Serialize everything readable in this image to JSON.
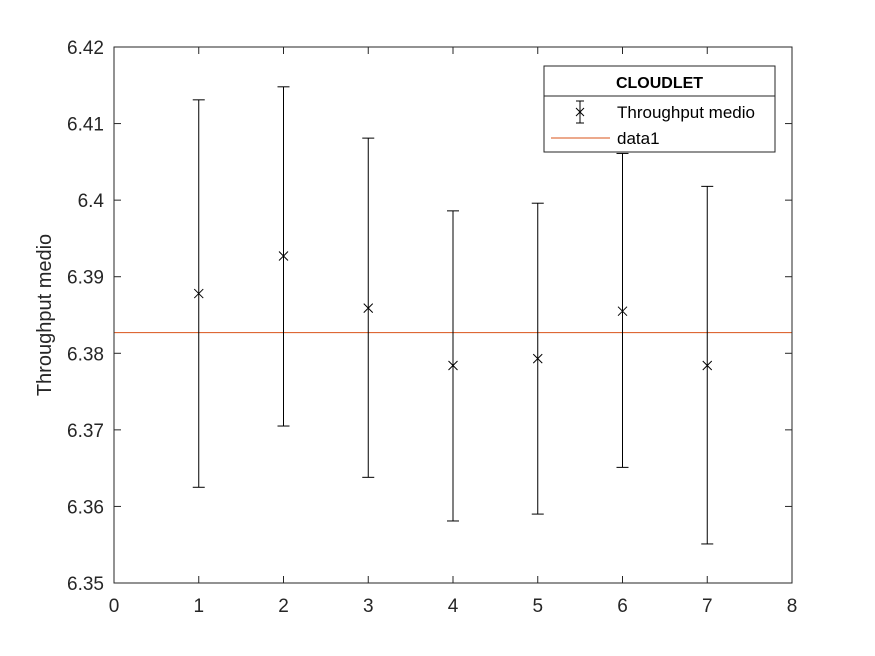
{
  "chart_data": {
    "type": "scatter",
    "title": "",
    "xlabel": "",
    "ylabel": "Throughput medio",
    "xlim": [
      0,
      8
    ],
    "ylim": [
      6.35,
      6.42
    ],
    "xticks": [
      "0",
      "1",
      "2",
      "3",
      "4",
      "5",
      "6",
      "7",
      "8"
    ],
    "yticks": [
      "6.35",
      "6.36",
      "6.37",
      "6.38",
      "6.39",
      "6.4",
      "6.41",
      "6.42"
    ],
    "grid": false,
    "legend_position": "top-right",
    "legend_title": "CLOUDLET",
    "series": [
      {
        "name": "Throughput medio",
        "kind": "errorbar",
        "marker": "x",
        "color": "#000000",
        "x": [
          1,
          2,
          3,
          4,
          5,
          6,
          7
        ],
        "y": [
          6.3878,
          6.3927,
          6.3859,
          6.3784,
          6.3793,
          6.3855,
          6.3784
        ],
        "lower": [
          6.3625,
          6.3705,
          6.3638,
          6.3581,
          6.359,
          6.3651,
          6.3551
        ],
        "upper": [
          6.4131,
          6.4148,
          6.4081,
          6.3986,
          6.3996,
          6.4061,
          6.4018
        ]
      },
      {
        "name": "data1",
        "kind": "hline",
        "color": "#d95319",
        "y": 6.3827
      }
    ]
  }
}
